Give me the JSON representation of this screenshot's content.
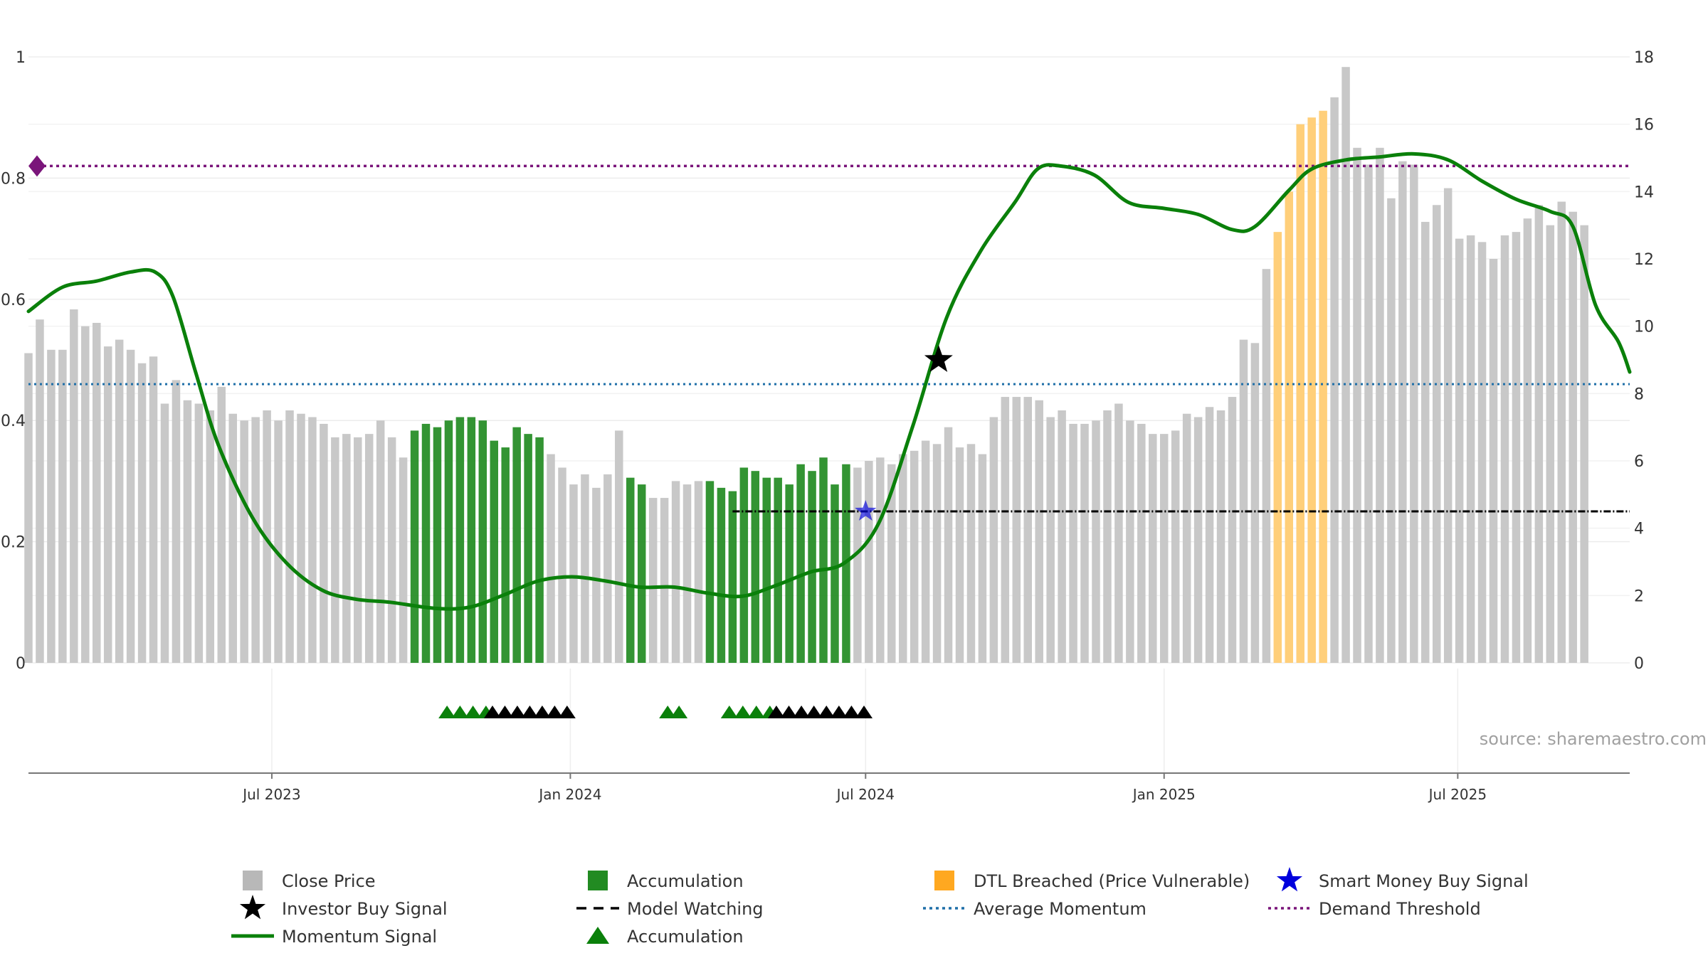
{
  "chart_data": {
    "type": "bar",
    "title": "",
    "xlabel": "",
    "ylabel_left": "",
    "ylabel_right": "",
    "left_axis": {
      "ylim": [
        0,
        1
      ],
      "ticks": [
        0,
        0.2,
        0.4,
        0.6,
        0.8,
        1
      ],
      "tick_labels": [
        "0",
        "0.2",
        "0.4",
        "0.6",
        "0.8",
        "1"
      ]
    },
    "right_axis": {
      "ylim": [
        0,
        18
      ],
      "ticks": [
        0,
        2,
        4,
        6,
        8,
        10,
        12,
        14,
        16,
        18
      ],
      "tick_labels": [
        "0",
        "2",
        "4",
        "6",
        "8",
        "10",
        "12",
        "14",
        "16",
        "18"
      ]
    },
    "x_axis": {
      "type": "date",
      "range": [
        "2023-02-01",
        "2025-10-15"
      ],
      "ticks": [
        {
          "date": "2023-07-01",
          "label": "Jul 2023"
        },
        {
          "date": "2024-01-01",
          "label": "Jan 2024"
        },
        {
          "date": "2024-07-01",
          "label": "Jul 2024"
        },
        {
          "date": "2025-01-01",
          "label": "Jan 2025"
        },
        {
          "date": "2025-07-01",
          "label": "Jul 2025"
        }
      ]
    },
    "grid": true,
    "bar_start_date": "2023-02-01",
    "bar_interval_days": 7,
    "close_price_right_axis": [
      9.2,
      10.2,
      9.3,
      9.3,
      10.5,
      10.0,
      10.1,
      9.4,
      9.6,
      9.3,
      8.9,
      9.1,
      7.7,
      8.4,
      7.8,
      7.7,
      7.5,
      8.2,
      7.4,
      7.2,
      7.3,
      7.5,
      7.2,
      7.5,
      7.4,
      7.3,
      7.1,
      6.7,
      6.8,
      6.7,
      6.8,
      7.2,
      6.7,
      6.1,
      6.9,
      7.1,
      7.0,
      7.2,
      7.3,
      7.3,
      7.2,
      6.6,
      6.4,
      7.0,
      6.8,
      6.7,
      6.2,
      5.8,
      5.3,
      5.6,
      5.2,
      5.6,
      6.9,
      5.5,
      5.3,
      4.9,
      4.9,
      5.4,
      5.3,
      5.4,
      5.4,
      5.2,
      5.1,
      5.8,
      5.7,
      5.5,
      5.5,
      5.3,
      5.9,
      5.7,
      6.1,
      5.3,
      5.9,
      5.8,
      6.0,
      6.1,
      5.9,
      6.2,
      6.3,
      6.6,
      6.5,
      7.0,
      6.4,
      6.5,
      6.2,
      7.3,
      7.9,
      7.9,
      7.9,
      7.8,
      7.3,
      7.5,
      7.1,
      7.1,
      7.2,
      7.5,
      7.7,
      7.2,
      7.1,
      6.8,
      6.8,
      6.9,
      7.4,
      7.3,
      7.6,
      7.5,
      7.9,
      9.6,
      9.5,
      11.7,
      12.8,
      14.0,
      16.0,
      16.2,
      16.4,
      16.8,
      17.7,
      15.3,
      14.8,
      15.3,
      13.8,
      14.9,
      14.8,
      13.1,
      13.6,
      14.1,
      12.6,
      12.7,
      12.5,
      12.0,
      12.7,
      12.8,
      13.2,
      13.6,
      13.0,
      13.7,
      13.4,
      13.0
    ],
    "series": [
      {
        "name": "Close Price",
        "color": "#c8c8c8",
        "highlight_colors": {
          "accumulation": "#228b22",
          "dtl_breached": "#ffcf7a"
        },
        "accumulation_bar_index_ranges": [
          [
            34,
            45
          ],
          [
            53,
            54
          ],
          [
            60,
            72
          ]
        ],
        "dtl_breached_bar_index_range": [
          110,
          114
        ]
      },
      {
        "name": "Momentum Signal",
        "color": "#0a800a",
        "axis": "left",
        "points": [
          [
            "2023-02-01",
            0.58
          ],
          [
            "2023-02-22",
            0.62
          ],
          [
            "2023-03-15",
            0.63
          ],
          [
            "2023-04-05",
            0.645
          ],
          [
            "2023-04-20",
            0.645
          ],
          [
            "2023-05-01",
            0.605
          ],
          [
            "2023-05-15",
            0.48
          ],
          [
            "2023-05-29",
            0.36
          ],
          [
            "2023-06-19",
            0.24
          ],
          [
            "2023-07-10",
            0.165
          ],
          [
            "2023-08-01",
            0.12
          ],
          [
            "2023-08-22",
            0.105
          ],
          [
            "2023-09-12",
            0.1
          ],
          [
            "2023-10-10",
            0.09
          ],
          [
            "2023-10-31",
            0.092
          ],
          [
            "2023-11-21",
            0.112
          ],
          [
            "2023-12-12",
            0.135
          ],
          [
            "2024-01-02",
            0.142
          ],
          [
            "2024-01-23",
            0.135
          ],
          [
            "2024-02-13",
            0.125
          ],
          [
            "2024-03-05",
            0.125
          ],
          [
            "2024-03-26",
            0.115
          ],
          [
            "2024-04-16",
            0.11
          ],
          [
            "2024-05-07",
            0.128
          ],
          [
            "2024-05-28",
            0.15
          ],
          [
            "2024-06-18",
            0.165
          ],
          [
            "2024-07-09",
            0.23
          ],
          [
            "2024-07-30",
            0.39
          ],
          [
            "2024-08-20",
            0.57
          ],
          [
            "2024-09-10",
            0.68
          ],
          [
            "2024-10-01",
            0.76
          ],
          [
            "2024-10-15",
            0.815
          ],
          [
            "2024-10-29",
            0.82
          ],
          [
            "2024-11-19",
            0.805
          ],
          [
            "2024-12-10",
            0.76
          ],
          [
            "2025-01-01",
            0.75
          ],
          [
            "2025-01-22",
            0.74
          ],
          [
            "2025-02-12",
            0.715
          ],
          [
            "2025-02-26",
            0.72
          ],
          [
            "2025-03-19",
            0.78
          ],
          [
            "2025-04-02",
            0.815
          ],
          [
            "2025-04-23",
            0.83
          ],
          [
            "2025-05-14",
            0.835
          ],
          [
            "2025-06-04",
            0.84
          ],
          [
            "2025-06-25",
            0.83
          ],
          [
            "2025-07-16",
            0.795
          ],
          [
            "2025-08-06",
            0.765
          ],
          [
            "2025-08-27",
            0.745
          ],
          [
            "2025-09-10",
            0.72
          ],
          [
            "2025-09-24",
            0.59
          ],
          [
            "2025-10-08",
            0.53
          ],
          [
            "2025-10-15",
            0.48
          ]
        ]
      },
      {
        "name": "Average Momentum",
        "color": "#1f6fa8",
        "axis": "left",
        "value": 0.46
      },
      {
        "name": "Demand Threshold",
        "color": "#7a157a",
        "axis": "left",
        "value": 0.82
      },
      {
        "name": "Model Watching",
        "color": "#000000",
        "axis": "left",
        "value": 0.25,
        "x_range": [
          "2024-04-10",
          "2025-10-15"
        ]
      },
      {
        "name": "Investor Buy Signal",
        "color": "#000000",
        "points": [
          [
            "2024-08-15",
            0.5
          ]
        ]
      },
      {
        "name": "Smart Money Buy Signal",
        "color": "#0000dd",
        "points": [
          [
            "2024-07-01",
            0.25
          ]
        ]
      },
      {
        "name": "Accumulation",
        "color": "#0a800a",
        "marker": "triangle-strip",
        "green_date_ranges": [
          [
            "2023-10-17",
            "2023-11-10"
          ],
          [
            "2024-03-01",
            "2024-03-08"
          ],
          [
            "2024-04-08",
            "2024-05-03"
          ]
        ],
        "black_date_ranges": [
          [
            "2023-11-14",
            "2023-12-30"
          ],
          [
            "2024-05-07",
            "2024-06-30"
          ]
        ]
      }
    ],
    "legend": {
      "placement": "bottom",
      "items": [
        {
          "label": "Close Price",
          "symbol": "square",
          "color": "#b8b8b8"
        },
        {
          "label": "Accumulation",
          "symbol": "square",
          "color": "#228b22"
        },
        {
          "label": "DTL Breached (Price Vulnerable)",
          "symbol": "square",
          "color": "#ffa820"
        },
        {
          "label": "Smart Money Buy Signal",
          "symbol": "star",
          "color": "#0000dd"
        },
        {
          "label": "Investor Buy Signal",
          "symbol": "star",
          "color": "#000000"
        },
        {
          "label": "Model Watching",
          "symbol": "dash",
          "color": "#000000"
        },
        {
          "label": "Average Momentum",
          "symbol": "dotted",
          "color": "#1f6fa8"
        },
        {
          "label": "Demand Threshold",
          "symbol": "dotted",
          "color": "#7a157a"
        },
        {
          "label": "Momentum Signal",
          "symbol": "line",
          "color": "#0a800a"
        },
        {
          "label": "Accumulation",
          "symbol": "triangle",
          "color": "#0a800a"
        }
      ]
    },
    "annotation": "source: sharemaestro.com"
  }
}
